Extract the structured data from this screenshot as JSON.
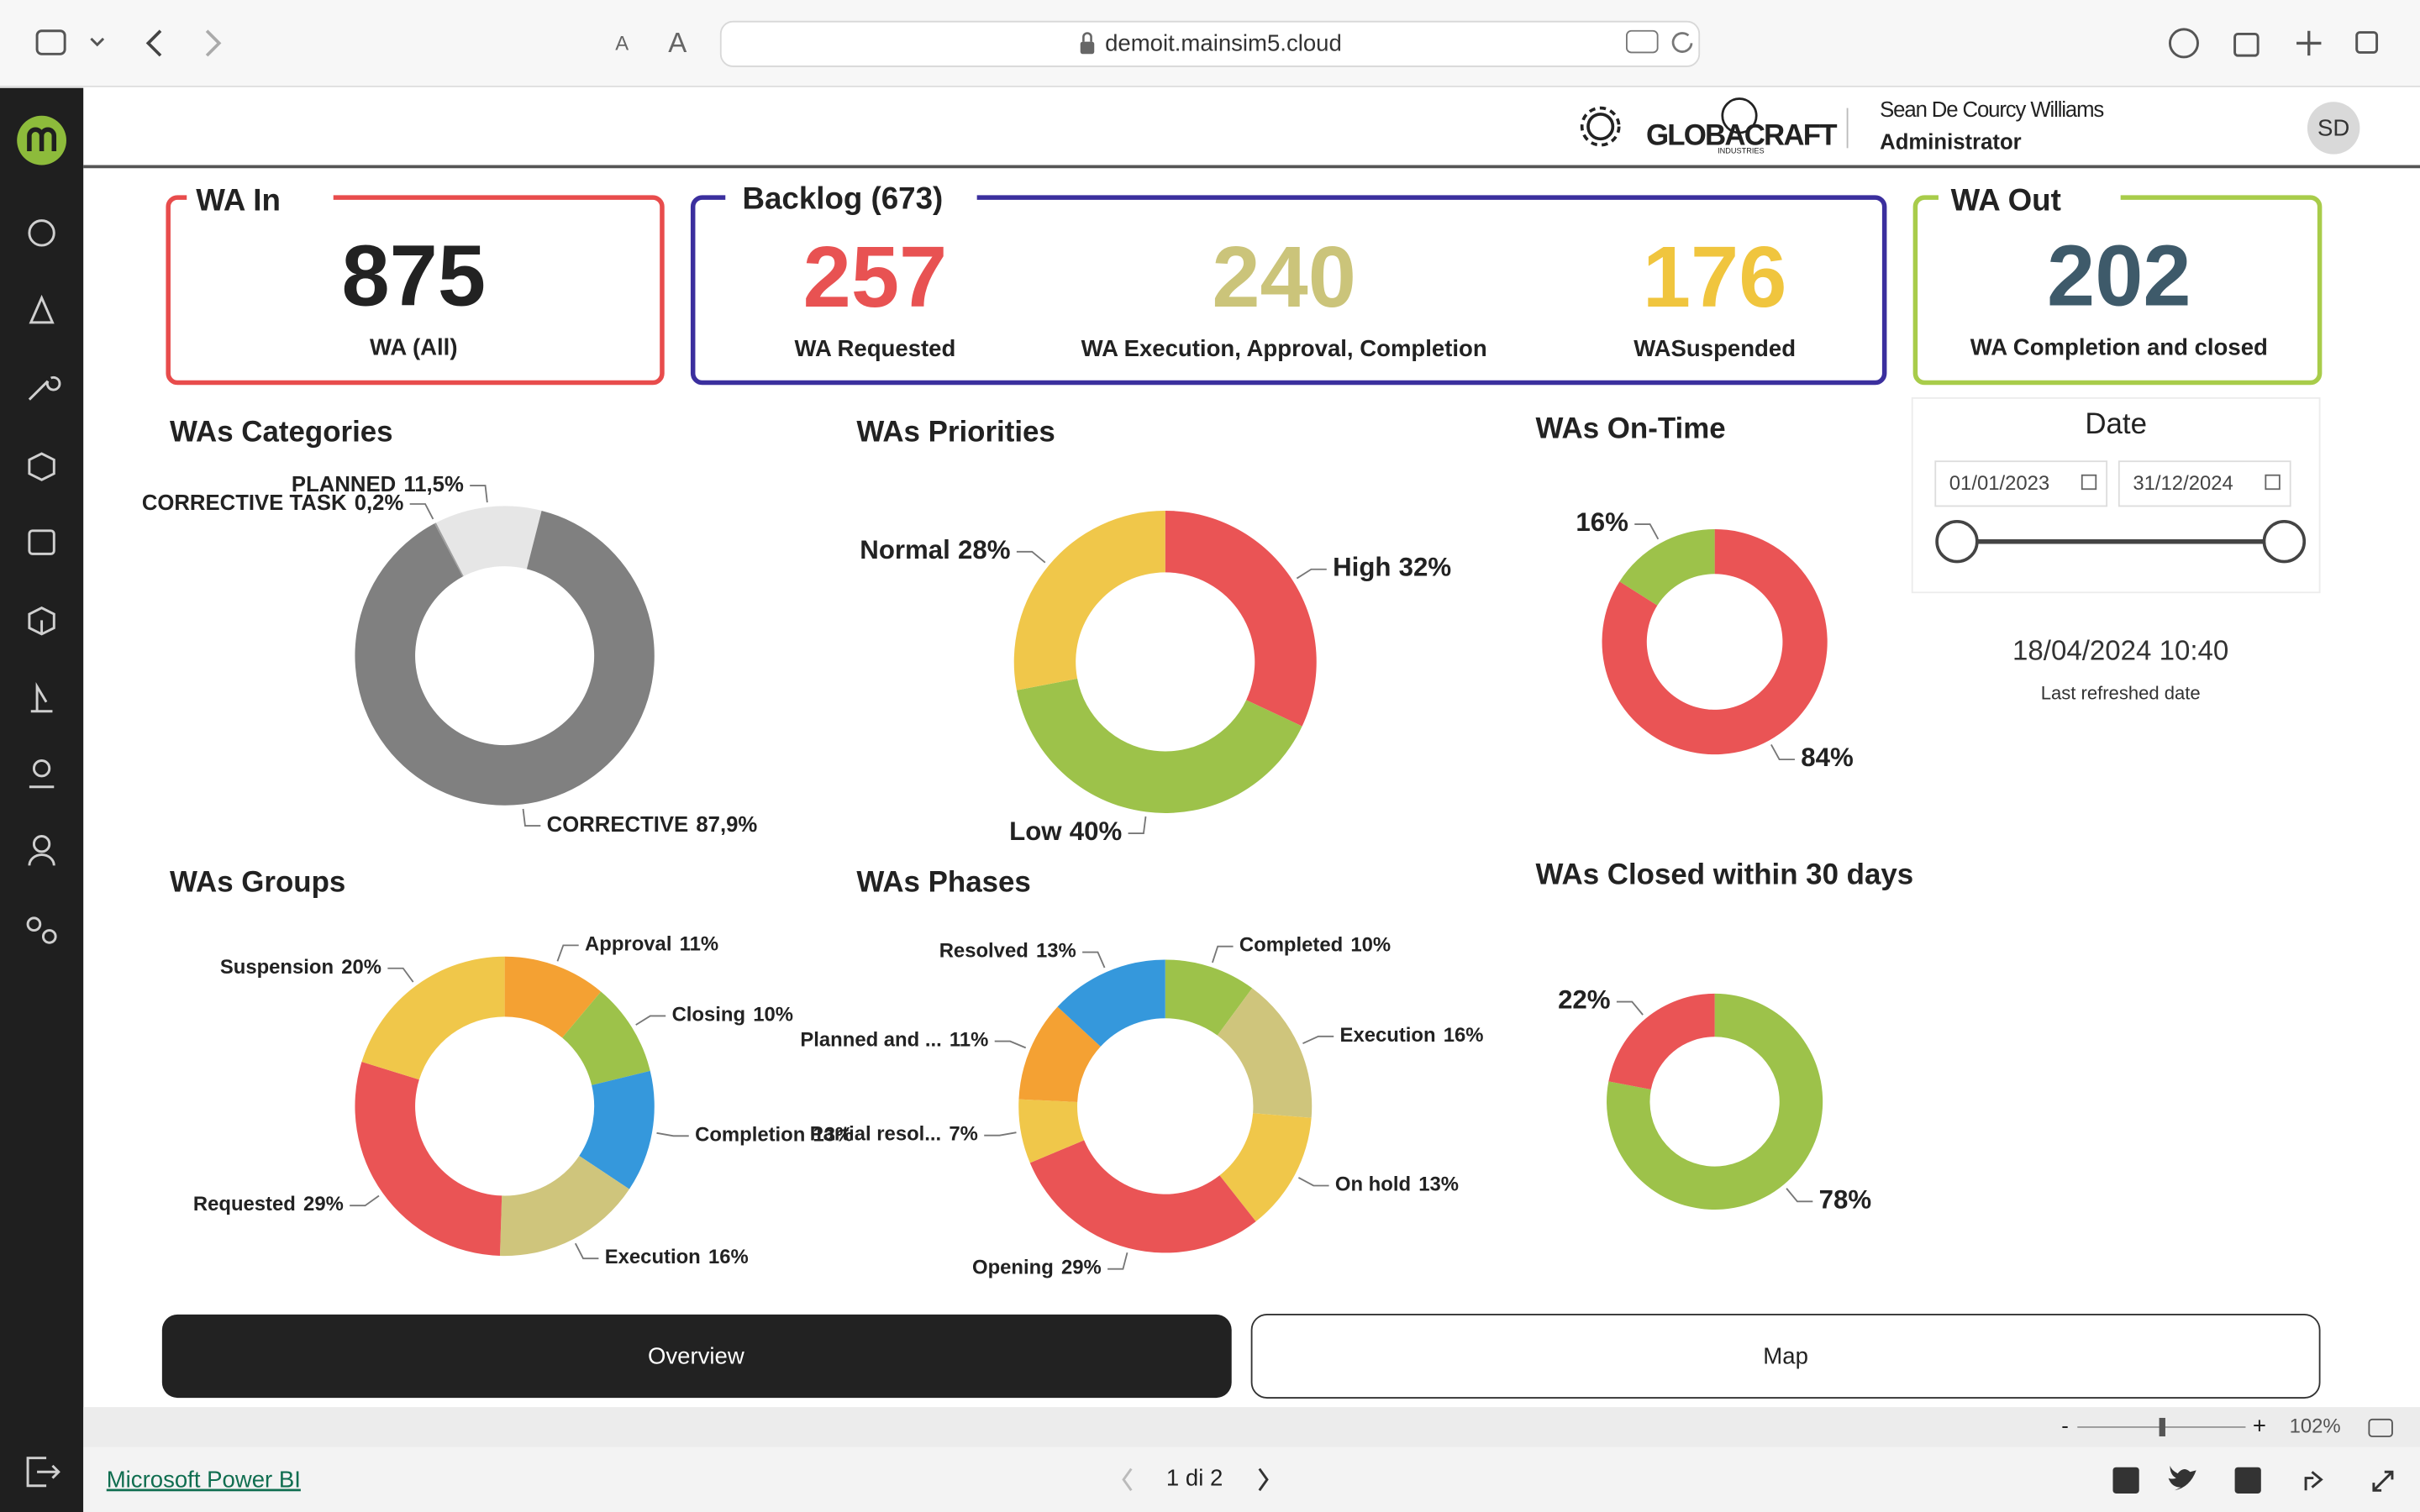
{
  "browser": {
    "text_small": "A",
    "text_large": "A",
    "url": "demoit.mainsim5.cloud"
  },
  "header": {
    "logo": "GLOBACRAFT",
    "logo_sub": "INDUSTRIES",
    "user_name": "Sean De Courcy Williams",
    "role": "Administrator",
    "avatar": "SD"
  },
  "kpis": {
    "wa_in": {
      "title": "WA In",
      "value": 875,
      "label": "WA (All)",
      "color": "#222222",
      "border": "#e84c4c"
    },
    "backlog": {
      "title": "Backlog (673)",
      "border": "#3b2f9e",
      "items": [
        {
          "value": 257,
          "label": "WA Requested",
          "color": "#e85252"
        },
        {
          "value": 240,
          "label": "WA Execution, Approval, Completion",
          "color": "#cbc47a"
        },
        {
          "value": 176,
          "label": "WASuspended",
          "color": "#f0c53e"
        }
      ]
    },
    "wa_out": {
      "title": "WA Out",
      "value": 202,
      "label": "WA Completion and closed",
      "color": "#3e5a6a",
      "border": "#a8cc4a"
    }
  },
  "date_filter": {
    "title": "Date",
    "start": "01/01/2023",
    "end": "31/12/2024"
  },
  "refresh": {
    "value": "18/04/2024 10:40",
    "label": "Last refreshed date"
  },
  "chart_data": [
    {
      "type": "donut",
      "title": "WAs Categories",
      "categories": [
        "CORRECTIVE TASK",
        "PLANNED",
        "CORRECTIVE"
      ],
      "values": [
        0.2,
        11.5,
        87.9
      ],
      "value_labels": [
        "0,2%",
        "11,5%",
        "87,9%"
      ],
      "colors": [
        "#a0a0a0",
        "#e6e6e6",
        "#808080"
      ]
    },
    {
      "type": "donut",
      "title": "WAs Priorities",
      "categories": [
        "High",
        "Low",
        "Normal"
      ],
      "values": [
        32,
        40,
        28
      ],
      "value_labels": [
        "32%",
        "40%",
        "28%"
      ],
      "colors": [
        "#ea5455",
        "#9dc24a",
        "#f0c74a"
      ]
    },
    {
      "type": "donut",
      "title": "WAs On-Time",
      "values": [
        84,
        16
      ],
      "value_labels": [
        "84%",
        "16%"
      ],
      "colors": [
        "#ea5455",
        "#9dc24a"
      ]
    },
    {
      "type": "donut",
      "title": "WAs Groups",
      "categories": [
        "Approval",
        "Closing",
        "Completion",
        "Execution",
        "Requested",
        "Suspension"
      ],
      "values": [
        11,
        10,
        13,
        16,
        29,
        20
      ],
      "value_labels": [
        "11%",
        "10%",
        "13%",
        "16%",
        "29%",
        "20%"
      ],
      "colors": [
        "#f4a133",
        "#9dc24a",
        "#3598dc",
        "#cfc57c",
        "#ea5455",
        "#f0c74a"
      ]
    },
    {
      "type": "donut",
      "title": "WAs Phases",
      "categories": [
        "Completed",
        "Execution",
        "On hold",
        "Opening",
        "Partial resol...",
        "Planned and ...",
        "Resolved"
      ],
      "values": [
        10,
        16,
        13,
        29,
        7,
        11,
        13
      ],
      "value_labels": [
        "10%",
        "16%",
        "13%",
        "29%",
        "7%",
        "11%",
        "13%"
      ],
      "colors": [
        "#9dc24a",
        "#cfc57c",
        "#f0c74a",
        "#ea5455",
        "#f0c74a",
        "#f4a133",
        "#3598dc"
      ]
    },
    {
      "type": "donut",
      "title": "WAs Closed within 30 days",
      "values": [
        78,
        22
      ],
      "value_labels": [
        "78%",
        "22%"
      ],
      "colors": [
        "#9dc24a",
        "#ea5455"
      ]
    }
  ],
  "buttons": [
    "Overview",
    "Map"
  ],
  "zoom": {
    "minus": "-",
    "plus": "+",
    "value": "102%"
  },
  "footer": {
    "link": "Microsoft Power BI",
    "page": "1 di 2"
  }
}
